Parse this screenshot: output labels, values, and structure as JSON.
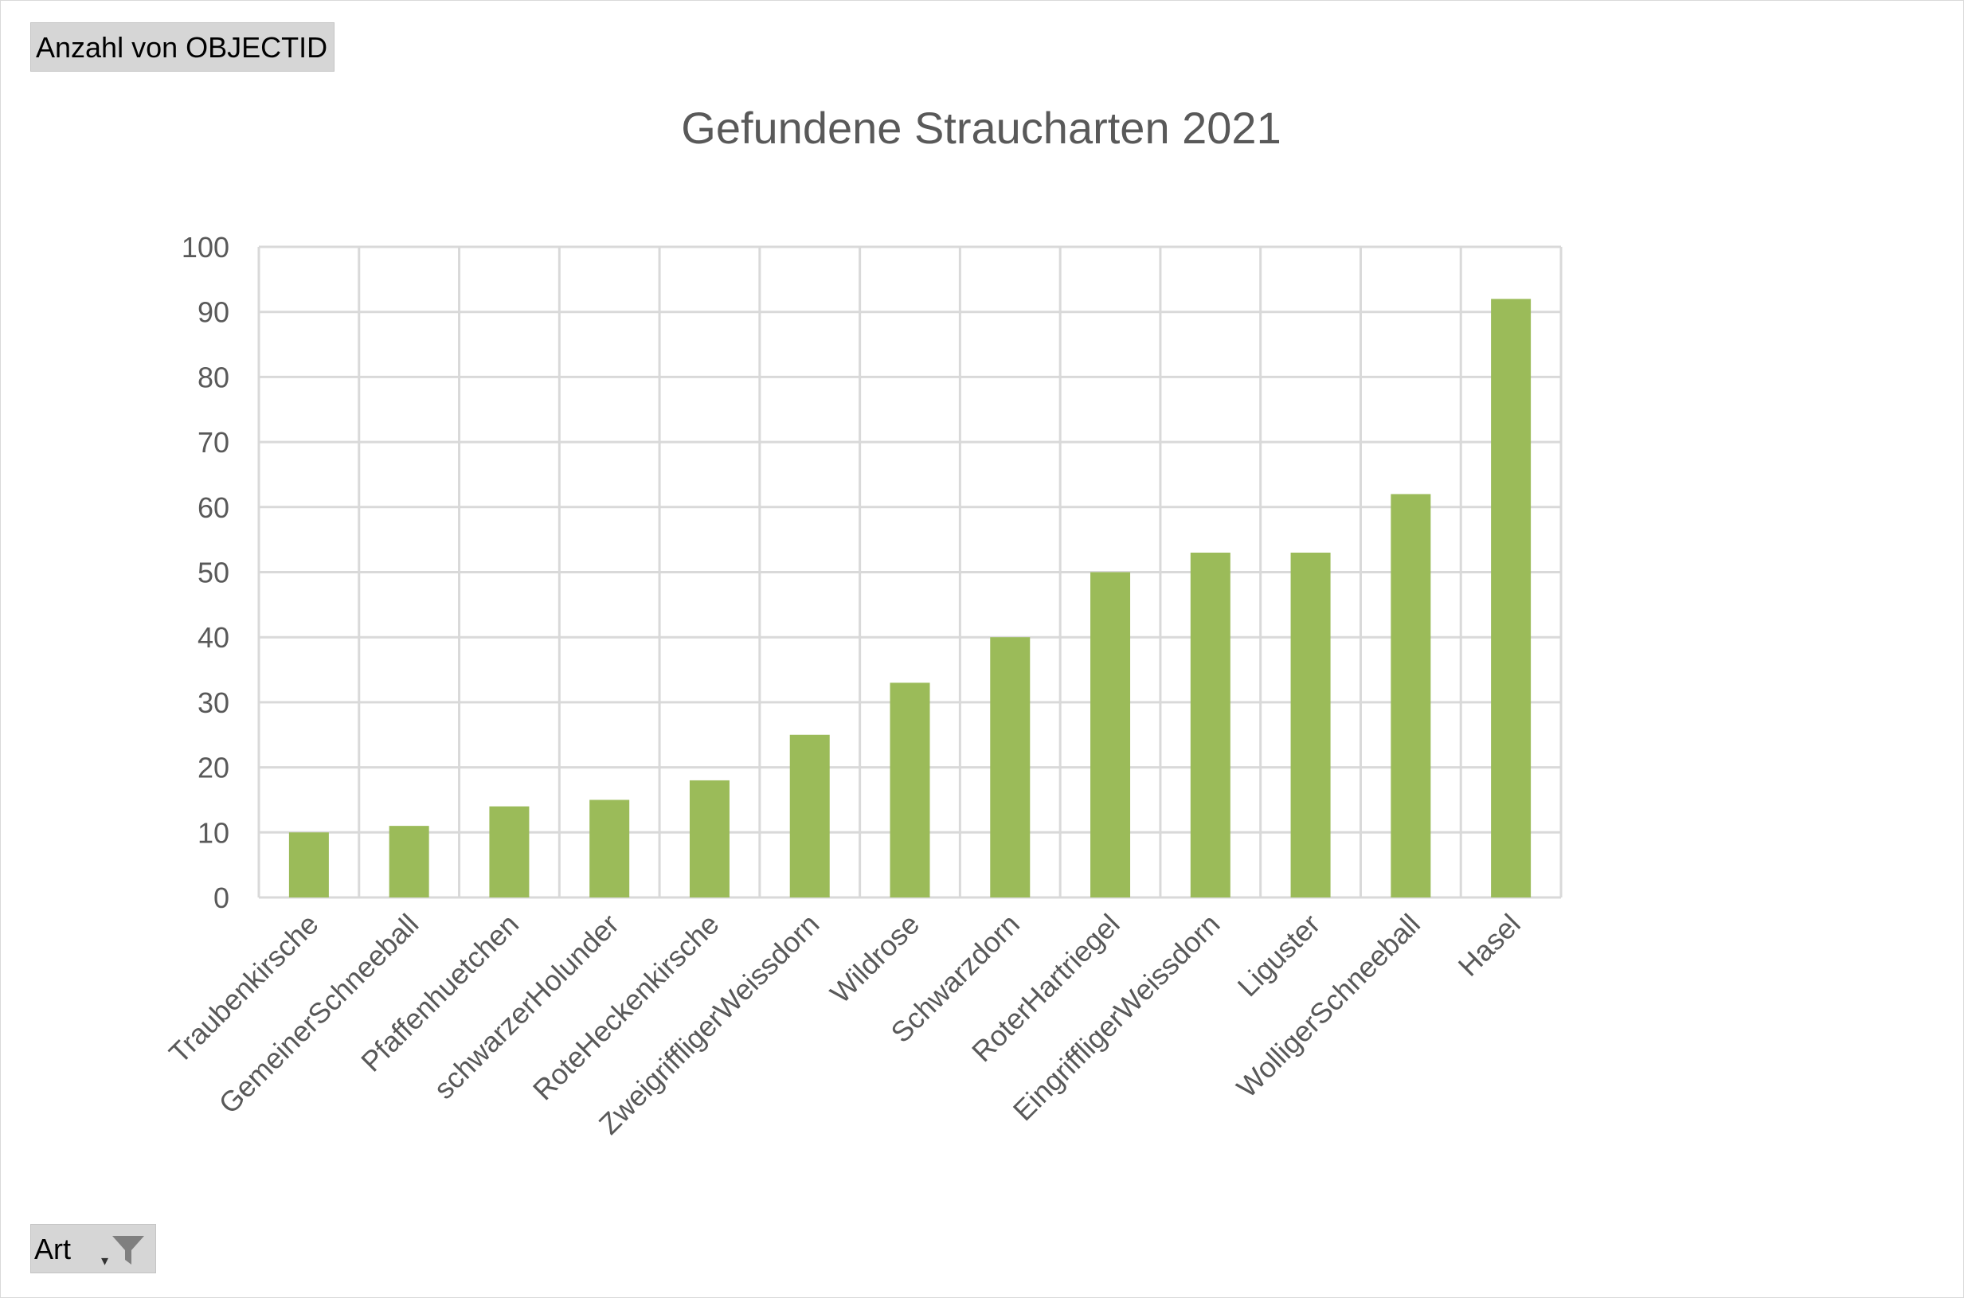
{
  "value_field_button": {
    "label": "Anzahl von OBJECTID"
  },
  "axis_field_button": {
    "label": "Art",
    "icon": "filter-icon"
  },
  "chart_data": {
    "type": "bar",
    "title": "Gefundene Straucharten 2021",
    "xlabel": "",
    "ylabel": "",
    "ylim": [
      0,
      100
    ],
    "yticks": [
      0,
      10,
      20,
      30,
      40,
      50,
      60,
      70,
      80,
      90,
      100
    ],
    "grid": true,
    "bar_color": "#9bbb59",
    "categories": [
      "Traubenkirsche",
      "GemeinerSchneeball",
      "Pfaffenhuetchen",
      "schwarzerHolunder",
      "RoteHeckenkirsche",
      "ZweigriffligerWeissdorn",
      "Wildrose",
      "Schwarzdorn",
      "RoterHartriegel",
      "EingriffligerWeissdorn",
      "Liguster",
      "WolligerSchneeball",
      "Hasel"
    ],
    "values": [
      10,
      11,
      14,
      15,
      18,
      25,
      33,
      40,
      50,
      53,
      53,
      62,
      92
    ]
  }
}
